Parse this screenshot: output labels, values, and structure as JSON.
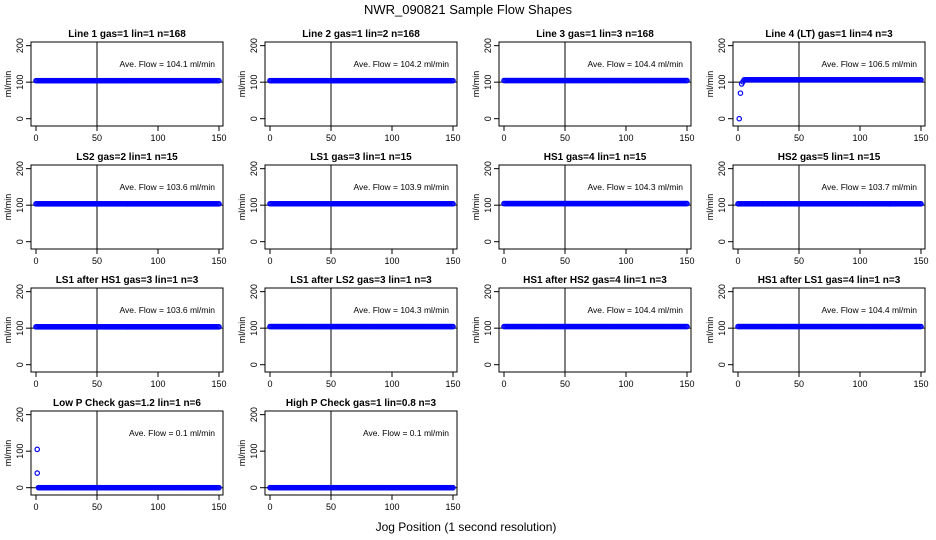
{
  "figure": {
    "title": "NWR_090821  Sample Flow Shapes",
    "xlabel": "Jog Position (1 second resolution)",
    "point_color": "#0000ff",
    "line_color": "#000000"
  },
  "chart_data": [
    {
      "type": "scatter",
      "title": "Line 1 gas=1 lin=1 n=168",
      "annotation": "Ave. Flow =  104.1  ml/min",
      "ylabel": "ml/min",
      "xlim": [
        0,
        150
      ],
      "ylim": [
        -20,
        210
      ],
      "x_ticks": [
        "0",
        "50",
        "100",
        "150"
      ],
      "y_ticks": [
        "0",
        "100",
        "200"
      ],
      "vline_x": 50,
      "hline_y": 100,
      "series": [
        {
          "x_range": [
            0,
            150
          ],
          "y": 104.1
        }
      ],
      "outliers": []
    },
    {
      "type": "scatter",
      "title": "Line 2 gas=1 lin=2 n=168",
      "annotation": "Ave. Flow =  104.2  ml/min",
      "ylabel": "ml/min",
      "xlim": [
        0,
        150
      ],
      "ylim": [
        -20,
        210
      ],
      "x_ticks": [
        "0",
        "50",
        "100",
        "150"
      ],
      "y_ticks": [
        "0",
        "100",
        "200"
      ],
      "vline_x": 50,
      "hline_y": 100,
      "series": [
        {
          "x_range": [
            0,
            150
          ],
          "y": 104.2
        }
      ],
      "outliers": []
    },
    {
      "type": "scatter",
      "title": "Line 3 gas=1 lin=3 n=168",
      "annotation": "Ave. Flow =  104.4  ml/min",
      "ylabel": "ml/min",
      "xlim": [
        0,
        150
      ],
      "ylim": [
        -20,
        210
      ],
      "x_ticks": [
        "0",
        "50",
        "100",
        "150"
      ],
      "y_ticks": [
        "0",
        "100",
        "200"
      ],
      "vline_x": 50,
      "hline_y": 100,
      "series": [
        {
          "x_range": [
            0,
            150
          ],
          "y": 104.4
        }
      ],
      "outliers": []
    },
    {
      "type": "scatter",
      "title": "Line 4 (LT) gas=1 lin=4 n=3",
      "annotation": "Ave. Flow =  106.5  ml/min",
      "ylabel": "ml/min",
      "xlim": [
        0,
        150
      ],
      "ylim": [
        -20,
        210
      ],
      "x_ticks": [
        "0",
        "50",
        "100",
        "150"
      ],
      "y_ticks": [
        "0",
        "100",
        "200"
      ],
      "vline_x": 50,
      "hline_y": 100,
      "series": [
        {
          "x_range": [
            5,
            150
          ],
          "y": 106.5
        }
      ],
      "outliers": [
        {
          "x": 1,
          "y": 0
        },
        {
          "x": 2,
          "y": 70
        },
        {
          "x": 3,
          "y": 95
        },
        {
          "x": 4,
          "y": 101
        }
      ]
    },
    {
      "type": "scatter",
      "title": "LS2 gas=2 lin=1 n=15",
      "annotation": "Ave. Flow =  103.6  ml/min",
      "ylabel": "ml/min",
      "xlim": [
        0,
        150
      ],
      "ylim": [
        -20,
        210
      ],
      "x_ticks": [
        "0",
        "50",
        "100",
        "150"
      ],
      "y_ticks": [
        "0",
        "100",
        "200"
      ],
      "vline_x": 50,
      "hline_y": 100,
      "series": [
        {
          "x_range": [
            0,
            150
          ],
          "y": 103.6
        }
      ],
      "outliers": []
    },
    {
      "type": "scatter",
      "title": "LS1 gas=3 lin=1 n=15",
      "annotation": "Ave. Flow =  103.9  ml/min",
      "ylabel": "ml/min",
      "xlim": [
        0,
        150
      ],
      "ylim": [
        -20,
        210
      ],
      "x_ticks": [
        "0",
        "50",
        "100",
        "150"
      ],
      "y_ticks": [
        "0",
        "100",
        "200"
      ],
      "vline_x": 50,
      "hline_y": 100,
      "series": [
        {
          "x_range": [
            0,
            150
          ],
          "y": 103.9
        }
      ],
      "outliers": []
    },
    {
      "type": "scatter",
      "title": "HS1 gas=4 lin=1 n=15",
      "annotation": "Ave. Flow =  104.3  ml/min",
      "ylabel": "ml/min",
      "xlim": [
        0,
        150
      ],
      "ylim": [
        -20,
        210
      ],
      "x_ticks": [
        "0",
        "50",
        "100",
        "150"
      ],
      "y_ticks": [
        "0",
        "100",
        "200"
      ],
      "vline_x": 50,
      "hline_y": 100,
      "series": [
        {
          "x_range": [
            0,
            150
          ],
          "y": 104.3
        }
      ],
      "outliers": []
    },
    {
      "type": "scatter",
      "title": "HS2 gas=5 lin=1 n=15",
      "annotation": "Ave. Flow =  103.7  ml/min",
      "ylabel": "ml/min",
      "xlim": [
        0,
        150
      ],
      "ylim": [
        -20,
        210
      ],
      "x_ticks": [
        "0",
        "50",
        "100",
        "150"
      ],
      "y_ticks": [
        "0",
        "100",
        "200"
      ],
      "vline_x": 50,
      "hline_y": 100,
      "series": [
        {
          "x_range": [
            0,
            150
          ],
          "y": 103.7
        }
      ],
      "outliers": []
    },
    {
      "type": "scatter",
      "title": "LS1 after HS1 gas=3 lin=1 n=3",
      "annotation": "Ave. Flow =  103.6  ml/min",
      "ylabel": "ml/min",
      "xlim": [
        0,
        150
      ],
      "ylim": [
        -20,
        210
      ],
      "x_ticks": [
        "0",
        "50",
        "100",
        "150"
      ],
      "y_ticks": [
        "0",
        "100",
        "200"
      ],
      "vline_x": 50,
      "hline_y": 100,
      "series": [
        {
          "x_range": [
            0,
            150
          ],
          "y": 103.6
        }
      ],
      "outliers": []
    },
    {
      "type": "scatter",
      "title": "LS1 after LS2 gas=3 lin=1 n=3",
      "annotation": "Ave. Flow =  104.3  ml/min",
      "ylabel": "ml/min",
      "xlim": [
        0,
        150
      ],
      "ylim": [
        -20,
        210
      ],
      "x_ticks": [
        "0",
        "50",
        "100",
        "150"
      ],
      "y_ticks": [
        "0",
        "100",
        "200"
      ],
      "vline_x": 50,
      "hline_y": 100,
      "series": [
        {
          "x_range": [
            0,
            150
          ],
          "y": 104.3
        }
      ],
      "outliers": []
    },
    {
      "type": "scatter",
      "title": "HS1 after HS2 gas=4 lin=1 n=3",
      "annotation": "Ave. Flow =  104.4  ml/min",
      "ylabel": "ml/min",
      "xlim": [
        0,
        150
      ],
      "ylim": [
        -20,
        210
      ],
      "x_ticks": [
        "0",
        "50",
        "100",
        "150"
      ],
      "y_ticks": [
        "0",
        "100",
        "200"
      ],
      "vline_x": 50,
      "hline_y": 100,
      "series": [
        {
          "x_range": [
            0,
            150
          ],
          "y": 104.4
        }
      ],
      "outliers": []
    },
    {
      "type": "scatter",
      "title": "HS1 after LS1 gas=4 lin=1 n=3",
      "annotation": "Ave. Flow =  104.4  ml/min",
      "ylabel": "ml/min",
      "xlim": [
        0,
        150
      ],
      "ylim": [
        -20,
        210
      ],
      "x_ticks": [
        "0",
        "50",
        "100",
        "150"
      ],
      "y_ticks": [
        "0",
        "100",
        "200"
      ],
      "vline_x": 50,
      "hline_y": 100,
      "series": [
        {
          "x_range": [
            0,
            150
          ],
          "y": 104.4
        }
      ],
      "outliers": []
    },
    {
      "type": "scatter",
      "title": "Low P Check gas=1.2 lin=1 n=6",
      "annotation": "Ave. Flow =  0.1  ml/min",
      "ylabel": "ml/min",
      "xlim": [
        0,
        150
      ],
      "ylim": [
        -20,
        210
      ],
      "x_ticks": [
        "0",
        "50",
        "100",
        "150"
      ],
      "y_ticks": [
        "0",
        "100",
        "200"
      ],
      "vline_x": 50,
      "hline_y": 0,
      "series": [
        {
          "x_range": [
            2,
            150
          ],
          "y": 0.1
        }
      ],
      "outliers": [
        {
          "x": 1,
          "y": 105
        },
        {
          "x": 1,
          "y": 40
        }
      ]
    },
    {
      "type": "scatter",
      "title": "High P Check gas=1 lin=0.8 n=3",
      "annotation": "Ave. Flow =  0.1  ml/min",
      "ylabel": "ml/min",
      "xlim": [
        0,
        150
      ],
      "ylim": [
        -20,
        210
      ],
      "x_ticks": [
        "0",
        "50",
        "100",
        "150"
      ],
      "y_ticks": [
        "0",
        "100",
        "200"
      ],
      "vline_x": 50,
      "hline_y": 0,
      "series": [
        {
          "x_range": [
            0,
            150
          ],
          "y": 0.1
        }
      ],
      "outliers": []
    }
  ]
}
